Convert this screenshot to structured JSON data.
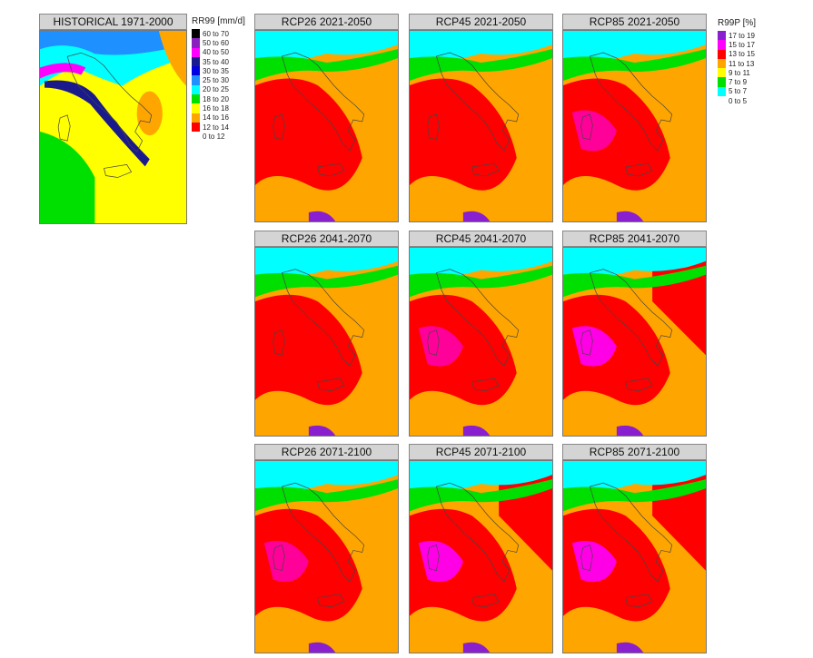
{
  "historical": {
    "title": "HISTORICAL  1971-2000",
    "legend": {
      "title": "RR99 [mm/d]",
      "items": [
        {
          "label": "60 to 70",
          "color": "#000000"
        },
        {
          "label": "50 to 60",
          "color": "#8a1fc0"
        },
        {
          "label": "40 to 50",
          "color": "#ff00ff"
        },
        {
          "label": "35 to 40",
          "color": "#1a1a8c"
        },
        {
          "label": "30 to 35",
          "color": "#0000e0"
        },
        {
          "label": "25 to 30",
          "color": "#1e90ff"
        },
        {
          "label": "20 to 25",
          "color": "#00ffff"
        },
        {
          "label": "18 to 20",
          "color": "#00e000"
        },
        {
          "label": "16 to 18",
          "color": "#ffff00"
        },
        {
          "label": "14 to 16",
          "color": "#ffa500"
        },
        {
          "label": "12 to 14",
          "color": "#ff0000"
        },
        {
          "label": "0 to 12",
          "color": "#ffffff"
        }
      ]
    }
  },
  "projections": {
    "legend": {
      "title": "R99P [%]",
      "items": [
        {
          "label": "17 to 19",
          "color": "#8a1fd0"
        },
        {
          "label": "15 to 17",
          "color": "#ff00ff"
        },
        {
          "label": "13 to 15",
          "color": "#ff0000"
        },
        {
          "label": "11 to 13",
          "color": "#ffa500"
        },
        {
          "label": "9 to 11",
          "color": "#ffff00"
        },
        {
          "label": "7 to 9",
          "color": "#00e000"
        },
        {
          "label": "5 to 7",
          "color": "#00ffff"
        },
        {
          "label": "0 to 5",
          "color": "#ffffff"
        }
      ]
    },
    "panels": [
      {
        "title": "RCP26  2021-2050"
      },
      {
        "title": "RCP45  2021-2050"
      },
      {
        "title": "RCP85  2021-2050"
      },
      {
        "title": "RCP26 2041-2070"
      },
      {
        "title": "RCP45 2041-2070"
      },
      {
        "title": "RCP85 2041-2070"
      },
      {
        "title": "RCP26 2071-2100"
      },
      {
        "title": "RCP45 2071-2100"
      },
      {
        "title": "RCP85 2071-2100"
      }
    ]
  }
}
